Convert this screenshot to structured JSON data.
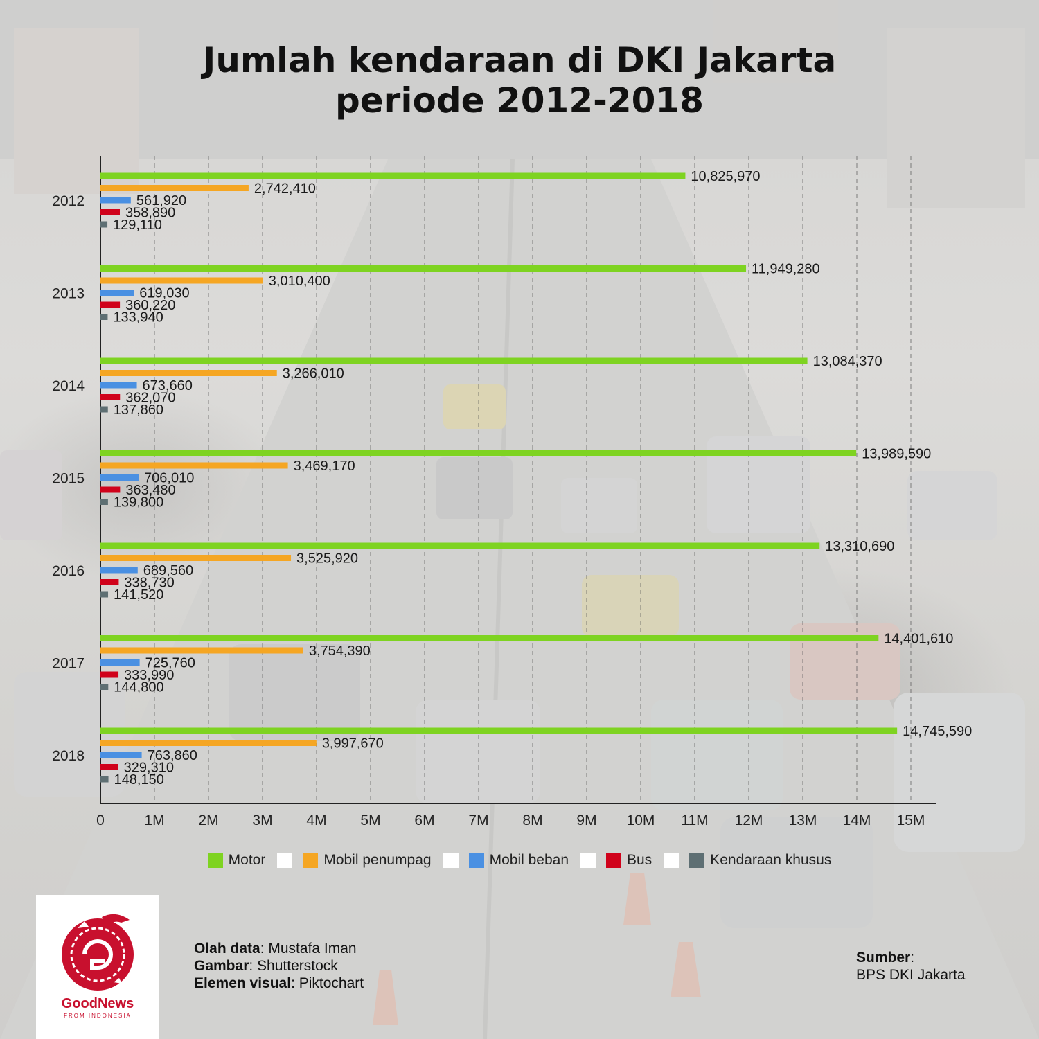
{
  "title": {
    "line1": "Jumlah kendaraan di DKI Jakarta",
    "line2": "periode 2012-2018"
  },
  "chart_data": {
    "type": "bar",
    "orientation": "horizontal",
    "categories": [
      "2012",
      "2013",
      "2014",
      "2015",
      "2016",
      "2017",
      "2018"
    ],
    "series": [
      {
        "name": "Motor",
        "color": "#7ed321",
        "values": [
          10825970,
          11949280,
          13084370,
          13989590,
          13310690,
          14401610,
          14745590
        ],
        "labels": [
          "10,825,970",
          "11,949,280",
          "13,084,370",
          "13,989,590",
          "13,310,690",
          "14,401,610",
          "14,745,590"
        ]
      },
      {
        "name": "Mobil penumpag",
        "color": "#f5a623",
        "values": [
          2742410,
          3010400,
          3266010,
          3469170,
          3525920,
          3754390,
          3997670
        ],
        "labels": [
          "2,742,410",
          "3,010,400",
          "3,266,010",
          "3,469,170",
          "3,525,920",
          "3,754,390",
          "3,997,670"
        ]
      },
      {
        "name": "Mobil beban",
        "color": "#4a90e2",
        "values": [
          561920,
          619030,
          673660,
          706010,
          689560,
          725760,
          763860
        ],
        "labels": [
          "561,920",
          "619,030",
          "673,660",
          "706,010",
          "689,560",
          "725,760",
          "763,860"
        ]
      },
      {
        "name": "Bus",
        "color": "#d0021b",
        "values": [
          358890,
          360220,
          362070,
          363480,
          338730,
          333990,
          329310
        ],
        "labels": [
          "358,890",
          "360,220",
          "362,070",
          "363,480",
          "338,730",
          "333,990",
          "329,310"
        ]
      },
      {
        "name": "Kendaraan khusus",
        "color": "#5e6f73",
        "values": [
          129110,
          133940,
          137860,
          139800,
          141520,
          144800,
          148150
        ],
        "labels": [
          "129,110",
          "133,940",
          "137,860",
          "139,800",
          "141,520",
          "144,800",
          "148,150"
        ]
      }
    ],
    "x_ticks": [
      "0",
      "1M",
      "2M",
      "3M",
      "4M",
      "5M",
      "6M",
      "7M",
      "8M",
      "9M",
      "10M",
      "11M",
      "12M",
      "13M",
      "14M",
      "15M"
    ],
    "xlim": [
      0,
      15500000
    ],
    "grid": "vertical dashed",
    "legend_position": "bottom"
  },
  "credits": {
    "olah_label": "Olah data",
    "olah_value": ": Mustafa Iman",
    "gambar_label": "Gambar",
    "gambar_value": ": Shutterstock",
    "elemen_label": "Elemen visual",
    "elemen_value": ": Piktochart"
  },
  "source": {
    "label": "Sumber",
    "colon": ":",
    "value": "BPS DKI Jakarta"
  },
  "logo": {
    "name": "GoodNews",
    "tagline": "FROM INDONESIA",
    "color": "#c8102e"
  }
}
